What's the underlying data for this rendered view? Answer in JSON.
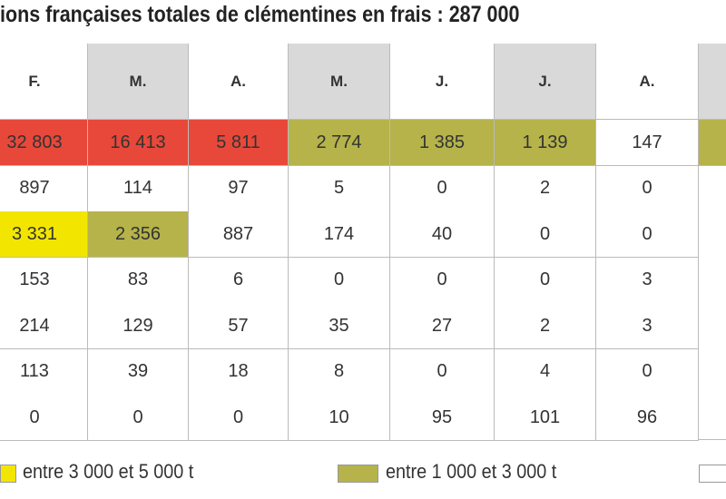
{
  "header": {
    "title": "ions françaises totales de clémentines en frais : 287 000"
  },
  "table": {
    "columns": [
      "F.",
      "M.",
      "A.",
      "M.",
      "J.",
      "J.",
      "A."
    ],
    "column_fills": [
      "#ffffff",
      "#d9d9d9",
      "#ffffff",
      "#d9d9d9",
      "#ffffff",
      "#d9d9d9",
      "#ffffff"
    ],
    "rows": [
      [
        "32 803",
        "16 413",
        "5 811",
        "2 774",
        "1 385",
        "1 139",
        "147"
      ],
      [
        "897",
        "114",
        "97",
        "5",
        "0",
        "2",
        "0"
      ],
      [
        "3 331",
        "2 356",
        "887",
        "174",
        "40",
        "0",
        "0"
      ],
      [
        "153",
        "83",
        "6",
        "0",
        "0",
        "0",
        "3"
      ],
      [
        "214",
        "129",
        "57",
        "35",
        "27",
        "2",
        "3"
      ],
      [
        "113",
        "39",
        "18",
        "8",
        "0",
        "4",
        "0"
      ],
      [
        "0",
        "0",
        "0",
        "10",
        "95",
        "101",
        "96"
      ]
    ],
    "fills": [
      [
        "#e8483a",
        "#e8483a",
        "#e8483a",
        "#b5b34a",
        "#b5b34a",
        "#b5b34a",
        "#ffffff"
      ],
      [
        "#ffffff",
        "#ffffff",
        "#ffffff",
        "#ffffff",
        "#ffffff",
        "#ffffff",
        "#ffffff"
      ],
      [
        "#f2e600",
        "#b5b34a",
        "#ffffff",
        "#ffffff",
        "#ffffff",
        "#ffffff",
        "#ffffff"
      ],
      [
        "#ffffff",
        "#ffffff",
        "#ffffff",
        "#ffffff",
        "#ffffff",
        "#ffffff",
        "#ffffff"
      ],
      [
        "#ffffff",
        "#ffffff",
        "#ffffff",
        "#ffffff",
        "#ffffff",
        "#ffffff",
        "#ffffff"
      ],
      [
        "#ffffff",
        "#ffffff",
        "#ffffff",
        "#ffffff",
        "#ffffff",
        "#ffffff",
        "#ffffff"
      ],
      [
        "#ffffff",
        "#ffffff",
        "#ffffff",
        "#ffffff",
        "#ffffff",
        "#ffffff",
        "#ffffff"
      ]
    ]
  },
  "legend": [
    {
      "label": "entre 3 000 et 5 000 t",
      "color": "#f2e600"
    },
    {
      "label": "entre 1 000 et 3 000 t",
      "color": "#b5b34a"
    }
  ]
}
